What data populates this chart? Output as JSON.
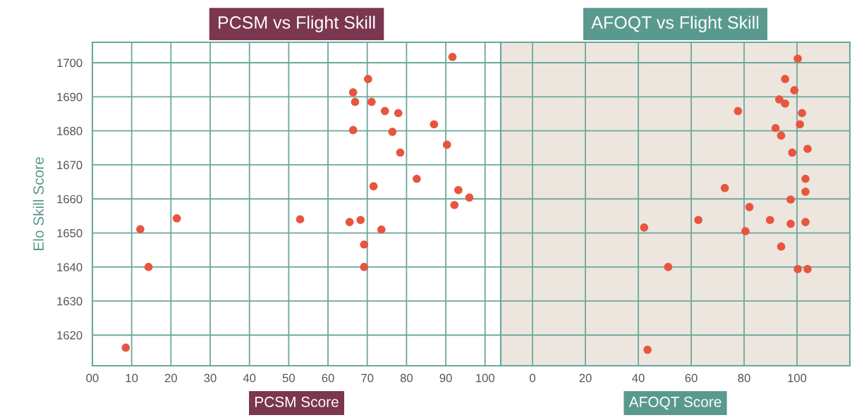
{
  "chart_data": [
    {
      "type": "scatter",
      "title": "PCSM vs Flight Skill",
      "xlabel": "PCSM Score",
      "ylabel": "Elo Skill Score",
      "marker": "circle",
      "grid": true,
      "xlim": [
        0,
        104
      ],
      "xticks": [
        {
          "value": 0,
          "label": "00"
        },
        10,
        20,
        30,
        40,
        50,
        60,
        70,
        80,
        90,
        100
      ],
      "ylim": [
        1611,
        1706
      ],
      "yticks": [
        1620,
        1630,
        1640,
        1650,
        1660,
        1670,
        1680,
        1690,
        1700
      ],
      "series": [
        {
          "color": "#e8553f",
          "x": [
            8.5,
            12.2,
            14.3,
            21.5,
            91.7,
            70.2,
            66.4,
            66.9,
            71.1,
            74.5,
            77.9,
            87.0,
            66.4,
            76.4,
            90.3,
            78.4,
            82.6,
            71.6,
            93.2,
            96.0,
            92.2,
            52.9,
            65.5,
            68.3,
            73.6,
            69.2,
            69.2
          ],
          "values": [
            1616.3,
            1651.1,
            1640.0,
            1654.3,
            1701.7,
            1695.2,
            1691.3,
            1688.5,
            1688.5,
            1685.8,
            1685.2,
            1681.9,
            1680.2,
            1679.7,
            1675.9,
            1673.6,
            1665.9,
            1663.7,
            1662.6,
            1660.4,
            1658.2,
            1654.0,
            1653.2,
            1653.8,
            1651.0,
            1646.6,
            1640.0
          ]
        }
      ]
    },
    {
      "type": "scatter",
      "title": "AFOQT vs Flight Skill",
      "xlabel": "AFOQT Score",
      "marker": "circle",
      "grid": true,
      "tick_labels": "x",
      "xlim": [
        -12,
        120
      ],
      "xticks": [
        0,
        20,
        40,
        60,
        80,
        100
      ],
      "ylim": [
        1611,
        1706
      ],
      "yticks": [
        1620,
        1630,
        1640,
        1650,
        1660,
        1670,
        1680,
        1690,
        1700
      ],
      "series": [
        {
          "color": "#e8553f",
          "x": [
            42.2,
            51.3,
            43.5,
            100.3,
            95.5,
            99.0,
            93.3,
            95.5,
            77.7,
            101.9,
            101.1,
            91.9,
            94.0,
            98.2,
            104.0,
            103.2,
            103.2,
            72.7,
            97.6,
            82.0,
            62.7,
            89.8,
            97.6,
            103.2,
            80.5,
            94.0,
            100.3,
            104.0
          ],
          "values": [
            1651.6,
            1640.0,
            1615.7,
            1701.2,
            1695.2,
            1691.9,
            1689.2,
            1688.0,
            1685.8,
            1685.2,
            1681.9,
            1680.8,
            1678.6,
            1673.6,
            1674.7,
            1665.9,
            1662.1,
            1663.2,
            1659.8,
            1657.6,
            1653.8,
            1653.8,
            1652.7,
            1653.2,
            1650.5,
            1646.0,
            1639.4,
            1639.4
          ]
        }
      ]
    }
  ]
}
